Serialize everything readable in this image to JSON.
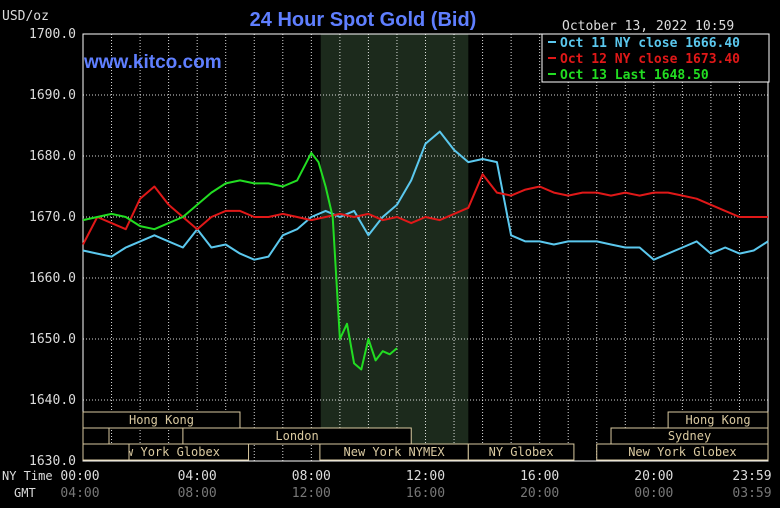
{
  "header": {
    "title": "24 Hour Spot Gold (Bid)",
    "unit": "USD/oz",
    "datetime": "October 13, 2022 10:59",
    "watermark": "www.kitco.com"
  },
  "colors": {
    "background": "#000000",
    "grid": "#ffffff",
    "axis_text": "#dddddd",
    "title": "#5f7fff",
    "nymex_shade": "#1c2a1c",
    "oct11": "#5bc8ee",
    "oct12": "#e01818",
    "oct13": "#22dd22",
    "session": "#d9c9a0"
  },
  "chart_data": {
    "type": "line",
    "title": "24 Hour Spot Gold (Bid)",
    "ylabel": "USD/oz",
    "ylim": [
      1630,
      1700
    ],
    "xlim": [
      0,
      24
    ],
    "grid": true,
    "legend_position": "top-right",
    "y_ticks": [
      "1700.0",
      "1690.0",
      "1680.0",
      "1670.0",
      "1660.0",
      "1650.0",
      "1640.0",
      "1630.0"
    ],
    "x_label_ny": "NY Time",
    "x_label_gmt": "GMT",
    "x_ticks_ny": [
      "00:00",
      "04:00",
      "08:00",
      "12:00",
      "16:00",
      "20:00",
      "23:59"
    ],
    "x_ticks_gmt": [
      "04:00",
      "08:00",
      "12:00",
      "16:00",
      "20:00",
      "00:00",
      "03:59"
    ],
    "x_tick_hours": [
      0,
      4,
      8,
      12,
      16,
      20,
      24
    ],
    "nymex_shade_hours": [
      8.33,
      13.5
    ],
    "sessions": [
      {
        "name": "Hong Kong",
        "start": 0,
        "end": 5.5,
        "row": 0
      },
      {
        "name": "Hong Kong",
        "start": 20.5,
        "end": 24,
        "row": 0
      },
      {
        "name": "London",
        "start": 3.5,
        "end": 11.5,
        "row": 1
      },
      {
        "name": "Sydney",
        "start": 18.5,
        "end": 24,
        "row": 1
      },
      {
        "name": "New York Globex",
        "start": 0,
        "end": 5.8,
        "row": 2
      },
      {
        "name": "New York NYMEX",
        "start": 8.3,
        "end": 13.5,
        "row": 2
      },
      {
        "name": "NY Globex",
        "start": 13.5,
        "end": 17.2,
        "row": 2
      },
      {
        "name": "New York Globex",
        "start": 18,
        "end": 24,
        "row": 2
      }
    ],
    "series": [
      {
        "name": "Oct 11 NY close 1666.40",
        "color": "#5bc8ee",
        "x": [
          0,
          0.5,
          1,
          1.5,
          2,
          2.5,
          3,
          3.5,
          4,
          4.5,
          5,
          5.5,
          6,
          6.5,
          7,
          7.5,
          8,
          8.5,
          9,
          9.5,
          10,
          10.5,
          11,
          11.5,
          12,
          12.5,
          13,
          13.5,
          14,
          14.5,
          15,
          15.5,
          16,
          16.5,
          17,
          17.5,
          18,
          18.5,
          19,
          19.5,
          20,
          20.5,
          21,
          21.5,
          22,
          22.5,
          23,
          23.5,
          24
        ],
        "values": [
          1664.5,
          1664.0,
          1663.5,
          1665.0,
          1666.0,
          1667.0,
          1666.0,
          1665.0,
          1668.0,
          1665.0,
          1665.5,
          1664.0,
          1663.0,
          1663.5,
          1667.0,
          1668.0,
          1670.0,
          1671.0,
          1670.0,
          1671.0,
          1667.0,
          1670.0,
          1672.0,
          1676.0,
          1682.0,
          1684.0,
          1681.0,
          1679.0,
          1679.5,
          1679.0,
          1667.0,
          1666.0,
          1666.0,
          1665.5,
          1666.0,
          1666.0,
          1666.0,
          1665.5,
          1665.0,
          1665.0,
          1663.0,
          1664.0,
          1665.0,
          1666.0,
          1664.0,
          1665.0,
          1664.0,
          1664.5,
          1666.0
        ]
      },
      {
        "name": "Oct 12 NY close 1673.40",
        "color": "#e01818",
        "x": [
          0,
          0.5,
          1,
          1.5,
          2,
          2.5,
          3,
          3.5,
          4,
          4.5,
          5,
          5.5,
          6,
          6.5,
          7,
          7.5,
          8,
          8.5,
          9,
          9.5,
          10,
          10.5,
          11,
          11.5,
          12,
          12.5,
          13,
          13.5,
          14,
          14.5,
          15,
          15.5,
          16,
          16.5,
          17,
          17.5,
          18,
          18.5,
          19,
          19.5,
          20,
          20.5,
          21,
          21.5,
          22,
          22.5,
          23,
          23.5,
          24
        ],
        "values": [
          1665.5,
          1670.0,
          1669.0,
          1668.0,
          1673.0,
          1675.0,
          1672.0,
          1670.0,
          1668.0,
          1670.0,
          1671.0,
          1671.0,
          1670.0,
          1670.0,
          1670.5,
          1670.0,
          1669.5,
          1670.0,
          1670.5,
          1670.0,
          1670.5,
          1669.5,
          1670.0,
          1669.0,
          1670.0,
          1669.5,
          1670.5,
          1671.5,
          1677.0,
          1674.0,
          1673.5,
          1674.5,
          1675.0,
          1674.0,
          1673.5,
          1674.0,
          1674.0,
          1673.5,
          1674.0,
          1673.5,
          1674.0,
          1674.0,
          1673.5,
          1673.0,
          1672.0,
          1671.0,
          1670.0,
          1670.0,
          1670.0
        ]
      },
      {
        "name": "Oct 13 Last 1648.50",
        "color": "#22dd22",
        "x": [
          0,
          0.5,
          1,
          1.5,
          2,
          2.5,
          3,
          3.5,
          4,
          4.5,
          5,
          5.5,
          6,
          6.5,
          7,
          7.5,
          8,
          8.25,
          8.5,
          8.75,
          9,
          9.25,
          9.5,
          9.75,
          10,
          10.25,
          10.5,
          10.75,
          11
        ],
        "values": [
          1669.5,
          1670.0,
          1670.5,
          1670.0,
          1668.5,
          1668.0,
          1669.0,
          1670.0,
          1672.0,
          1674.0,
          1675.5,
          1676.0,
          1675.5,
          1675.5,
          1675.0,
          1676.0,
          1680.5,
          1679.0,
          1675.0,
          1670.0,
          1650.0,
          1652.5,
          1646.0,
          1645.0,
          1650.0,
          1646.5,
          1648.0,
          1647.5,
          1648.5
        ]
      }
    ]
  }
}
